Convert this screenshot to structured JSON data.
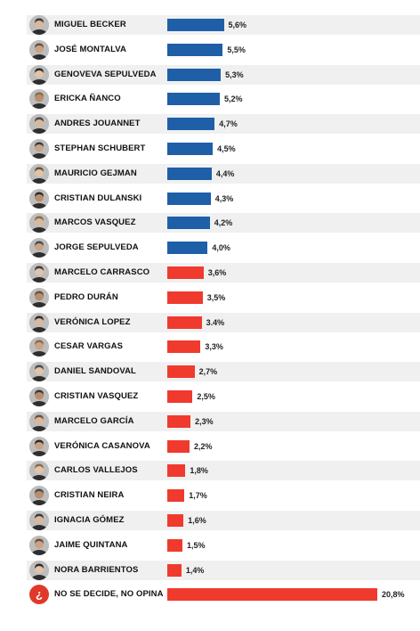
{
  "colors": {
    "blue": "#1f5fa8",
    "red": "#f03a2e",
    "question_badge": "#e0392a"
  },
  "chart_data": {
    "type": "bar",
    "orientation": "horizontal",
    "categories": [
      "MIGUEL BECKER",
      "JOSÉ MONTALVA",
      "GENOVEVA SEPULVEDA",
      "ERICKA ÑANCO",
      "ANDRES JOUANNET",
      "STEPHAN SCHUBERT",
      "MAURICIO GEJMAN",
      "CRISTIAN DULANSKI",
      "MARCOS VASQUEZ",
      "JORGE SEPULVEDA",
      "MARCELO CARRASCO",
      "PEDRO DURÁN",
      "VERÓNICA LOPEZ",
      "CESAR VARGAS",
      "DANIEL SANDOVAL",
      "CRISTIAN VASQUEZ",
      "MARCELO GARCÍA",
      "VERÓNICA CASANOVA",
      "CARLOS VALLEJOS",
      "CRISTIAN NEIRA",
      "IGNACIA GÓMEZ",
      "JAIME QUINTANA",
      "NORA BARRIENTOS",
      "NO SE DECIDE, NO OPINA"
    ],
    "values": [
      5.6,
      5.5,
      5.3,
      5.2,
      4.7,
      4.5,
      4.4,
      4.3,
      4.2,
      4.0,
      3.6,
      3.5,
      3.4,
      3.3,
      2.7,
      2.5,
      2.3,
      2.2,
      1.8,
      1.7,
      1.6,
      1.5,
      1.4,
      20.8
    ],
    "labels": [
      "5,6%",
      "5,5%",
      "5,3%",
      "5,2%",
      "4,7%",
      "4,5%",
      "4,4%",
      "4,3%",
      "4,2%",
      "4,0%",
      "3,6%",
      "3,5%",
      "3.4%",
      "3,3%",
      "2,7%",
      "2,5%",
      "2,3%",
      "2,2%",
      "1,8%",
      "1,7%",
      "1,6%",
      "1,5%",
      "1,4%",
      "20,8%"
    ],
    "bar_colors": [
      "blue",
      "blue",
      "blue",
      "blue",
      "blue",
      "blue",
      "blue",
      "blue",
      "blue",
      "blue",
      "red",
      "red",
      "red",
      "red",
      "red",
      "red",
      "red",
      "red",
      "red",
      "red",
      "red",
      "red",
      "red",
      "red"
    ],
    "icons": [
      "avatar-photo",
      "avatar-photo",
      "avatar-photo",
      "avatar-photo",
      "avatar-photo",
      "avatar-photo",
      "avatar-photo",
      "avatar-photo",
      "avatar-photo",
      "avatar-photo",
      "avatar-photo",
      "avatar-photo",
      "avatar-photo",
      "avatar-photo",
      "avatar-photo",
      "avatar-photo",
      "avatar-photo",
      "avatar-photo",
      "avatar-photo",
      "avatar-photo",
      "avatar-photo",
      "avatar-photo",
      "avatar-photo",
      "question-icon"
    ],
    "question_glyph": "¿",
    "xlim": [
      0,
      20.8
    ],
    "unit": "%",
    "legend": "none",
    "grid": false
  }
}
